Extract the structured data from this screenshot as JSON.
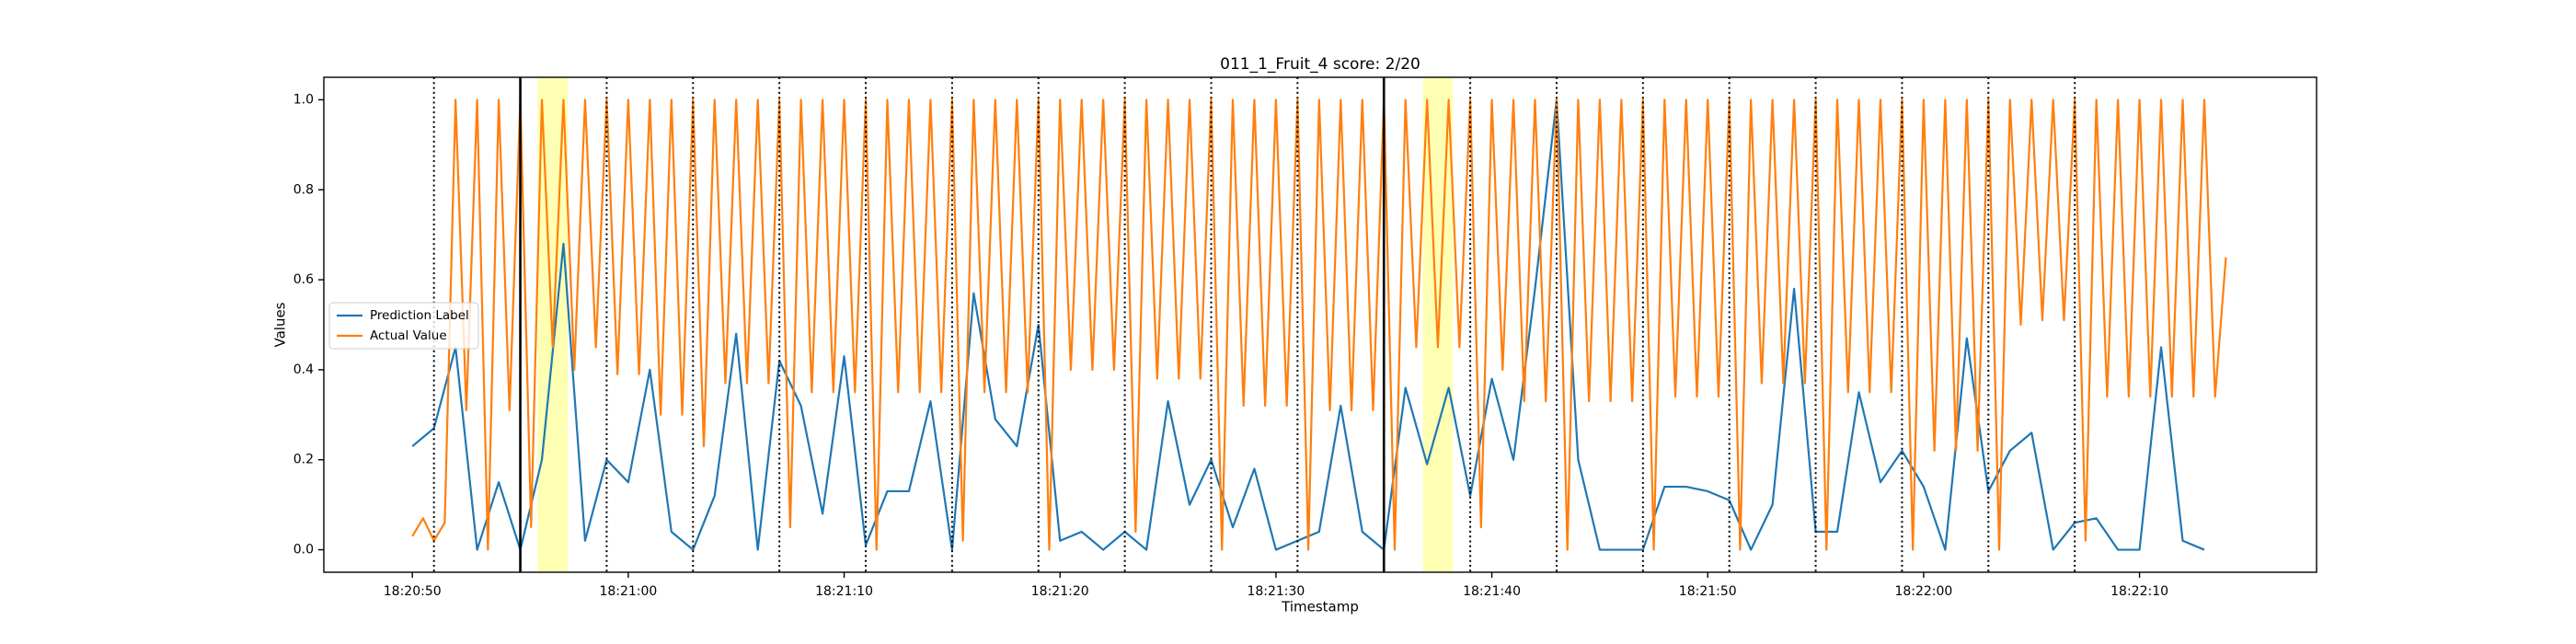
{
  "chart_data": {
    "type": "line",
    "title": "011_1_Fruit_4 score: 2/20",
    "xlabel": "Timestamp",
    "ylabel": "Values",
    "legend": "center left",
    "xlim": [
      "18:20:45.9",
      "18:22:18.2"
    ],
    "xticks": [
      "18:20:50",
      "18:21:00",
      "18:21:10",
      "18:21:20",
      "18:21:30",
      "18:21:40",
      "18:21:50",
      "18:22:00",
      "18:22:10"
    ],
    "ylim": [
      -0.05,
      1.05
    ],
    "yticks": [
      {
        "value": 0,
        "label": "0.0"
      },
      0.2,
      0.4,
      0.6,
      0.8,
      {
        "value": 1,
        "label": "1.0"
      }
    ],
    "highlight_spans": [
      [
        "18:20:55.8",
        "18:20:57.2"
      ],
      [
        "18:21:36.8",
        "18:21:38.2"
      ]
    ],
    "highlight_color": "#ffff99",
    "dotted_lines": [
      "18:20:51",
      "18:20:59",
      "18:21:03",
      "18:21:07",
      "18:21:11",
      "18:21:15",
      "18:21:19",
      "18:21:23",
      "18:21:27",
      "18:21:31",
      "18:21:39",
      "18:21:43",
      "18:21:47",
      "18:21:51",
      "18:21:55",
      "18:21:59",
      "18:22:03",
      "18:22:07"
    ],
    "solid_lines": [
      "18:20:55",
      "18:21:35"
    ],
    "series": [
      {
        "name": "Prediction Label",
        "color": "#1f77b4",
        "x": [
          "18:20:50",
          "18:20:51",
          "18:20:52",
          "18:20:53",
          "18:20:54",
          "18:20:55",
          "18:20:56",
          "18:20:57",
          "18:20:58",
          "18:20:59",
          "18:21:00",
          "18:21:01",
          "18:21:02",
          "18:21:03",
          "18:21:04",
          "18:21:05",
          "18:21:06",
          "18:21:07",
          "18:21:08",
          "18:21:09",
          "18:21:10",
          "18:21:11",
          "18:21:12",
          "18:21:13",
          "18:21:14",
          "18:21:15",
          "18:21:16",
          "18:21:17",
          "18:21:18",
          "18:21:19",
          "18:21:20",
          "18:21:21",
          "18:21:22",
          "18:21:23",
          "18:21:24",
          "18:21:25",
          "18:21:26",
          "18:21:27",
          "18:21:28",
          "18:21:29",
          "18:21:30",
          "18:21:31",
          "18:21:32",
          "18:21:33",
          "18:21:34",
          "18:21:35",
          "18:21:36",
          "18:21:37",
          "18:21:38",
          "18:21:39",
          "18:21:40",
          "18:21:41",
          "18:21:42",
          "18:21:43",
          "18:21:44",
          "18:21:45",
          "18:21:46",
          "18:21:47",
          "18:21:48",
          "18:21:49",
          "18:21:50",
          "18:21:51",
          "18:21:52",
          "18:21:53",
          "18:21:54",
          "18:21:55",
          "18:21:56",
          "18:21:57",
          "18:21:58",
          "18:21:59",
          "18:22:00",
          "18:22:01",
          "18:22:02",
          "18:22:03",
          "18:22:04",
          "18:22:05",
          "18:22:06",
          "18:22:07",
          "18:22:08",
          "18:22:09",
          "18:22:10",
          "18:22:11",
          "18:22:12",
          "18:22:13"
        ],
        "values": [
          0.23,
          0.27,
          0.45,
          0,
          0.15,
          0,
          0.2,
          0.68,
          0.02,
          0.2,
          0.15,
          0.4,
          0.04,
          0,
          0.12,
          0.48,
          0,
          0.42,
          0.32,
          0.08,
          0.43,
          0.01,
          0.13,
          0.13,
          0.33,
          0,
          0.57,
          0.29,
          0.23,
          0.5,
          0.02,
          0.04,
          0,
          0.04,
          0,
          0.33,
          0.1,
          0.2,
          0.05,
          0.18,
          0,
          0.02,
          0.04,
          0.32,
          0.04,
          0,
          0.36,
          0.19,
          0.36,
          0.12,
          0.38,
          0.2,
          0.58,
          1,
          0.2,
          0,
          0,
          0,
          0.14,
          0.14,
          0.13,
          0.11,
          0,
          0.1,
          0.58,
          0.04,
          0.04,
          0.35,
          0.15,
          0.22,
          0.14,
          0,
          0.47,
          0.13,
          0.22,
          0.26,
          0,
          0.06,
          0.07,
          0,
          0,
          0.45,
          0.02,
          0
        ]
      },
      {
        "name": "Actual Value",
        "color": "#ff7f0e",
        "x": [
          "18:20:50",
          "18:20:50.5",
          "18:20:51",
          "18:20:51.5",
          "18:20:52",
          "18:20:52.5",
          "18:20:53",
          "18:20:53.5",
          "18:20:54",
          "18:20:54.5",
          "18:20:55",
          "18:20:55.5",
          "18:20:56",
          "18:20:56.5",
          "18:20:57",
          "18:20:57.5",
          "18:20:58",
          "18:20:58.5",
          "18:20:59",
          "18:20:59.5",
          "18:21:00",
          "18:21:00.5",
          "18:21:01",
          "18:21:01.5",
          "18:21:02",
          "18:21:02.5",
          "18:21:03",
          "18:21:03.5",
          "18:21:04",
          "18:21:04.5",
          "18:21:05",
          "18:21:05.5",
          "18:21:06",
          "18:21:06.5",
          "18:21:07",
          "18:21:07.5",
          "18:21:08",
          "18:21:08.5",
          "18:21:09",
          "18:21:09.5",
          "18:21:10",
          "18:21:10.5",
          "18:21:11",
          "18:21:11.5",
          "18:21:12",
          "18:21:12.5",
          "18:21:13",
          "18:21:13.5",
          "18:21:14",
          "18:21:14.5",
          "18:21:15",
          "18:21:15.5",
          "18:21:16",
          "18:21:16.5",
          "18:21:17",
          "18:21:17.5",
          "18:21:18",
          "18:21:18.5",
          "18:21:19",
          "18:21:19.5",
          "18:21:20",
          "18:21:20.5",
          "18:21:21",
          "18:21:21.5",
          "18:21:22",
          "18:21:22.5",
          "18:21:23",
          "18:21:23.5",
          "18:21:24",
          "18:21:24.5",
          "18:21:25",
          "18:21:25.5",
          "18:21:26",
          "18:21:26.5",
          "18:21:27",
          "18:21:27.5",
          "18:21:28",
          "18:21:28.5",
          "18:21:29",
          "18:21:29.5",
          "18:21:30",
          "18:21:30.5",
          "18:21:31",
          "18:21:31.5",
          "18:21:32",
          "18:21:32.5",
          "18:21:33",
          "18:21:33.5",
          "18:21:34",
          "18:21:34.5",
          "18:21:35",
          "18:21:35.5",
          "18:21:36",
          "18:21:36.5",
          "18:21:37",
          "18:21:37.5",
          "18:21:38",
          "18:21:38.5",
          "18:21:39",
          "18:21:39.5",
          "18:21:40",
          "18:21:40.5",
          "18:21:41",
          "18:21:41.5",
          "18:21:42",
          "18:21:42.5",
          "18:21:43",
          "18:21:43.5",
          "18:21:44",
          "18:21:44.5",
          "18:21:45",
          "18:21:45.5",
          "18:21:46",
          "18:21:46.5",
          "18:21:47",
          "18:21:47.5",
          "18:21:48",
          "18:21:48.5",
          "18:21:49",
          "18:21:49.5",
          "18:21:50",
          "18:21:50.5",
          "18:21:51",
          "18:21:51.5",
          "18:21:52",
          "18:21:52.5",
          "18:21:53",
          "18:21:53.5",
          "18:21:54",
          "18:21:54.5",
          "18:21:55",
          "18:21:55.5",
          "18:21:56",
          "18:21:56.5",
          "18:21:57",
          "18:21:57.5",
          "18:21:58",
          "18:21:58.5",
          "18:21:59",
          "18:21:59.5",
          "18:22:00",
          "18:22:00.5",
          "18:22:01",
          "18:22:01.5",
          "18:22:02",
          "18:22:02.5",
          "18:22:03",
          "18:22:03.5",
          "18:22:04",
          "18:22:04.5",
          "18:22:05",
          "18:22:05.5",
          "18:22:06",
          "18:22:06.5",
          "18:22:07",
          "18:22:07.5",
          "18:22:08",
          "18:22:08.5",
          "18:22:09",
          "18:22:09.5",
          "18:22:10",
          "18:22:10.5",
          "18:22:11",
          "18:22:11.5",
          "18:22:12",
          "18:22:12.5",
          "18:22:13",
          "18:22:13.5",
          "18:22:14"
        ],
        "values": [
          0.03,
          0.07,
          0.02,
          0.06,
          1,
          0.31,
          1,
          0,
          1,
          0.31,
          1,
          0.05,
          1,
          0.45,
          1,
          0.4,
          1,
          0.45,
          1,
          0.39,
          1,
          0.39,
          1,
          0.3,
          1,
          0.3,
          1,
          0.23,
          1,
          0.37,
          1,
          0.37,
          1,
          0.37,
          1,
          0.05,
          1,
          0.35,
          1,
          0.35,
          1,
          0.35,
          1,
          0,
          1,
          0.35,
          1,
          0.35,
          1,
          0.35,
          1,
          0.02,
          1,
          0.35,
          1,
          0.35,
          1,
          0.35,
          1,
          0,
          1,
          0.4,
          1,
          0.4,
          1,
          0.4,
          1,
          0.04,
          1,
          0.38,
          1,
          0.38,
          1,
          0.38,
          1,
          0,
          1,
          0.32,
          1,
          0.32,
          1,
          0.32,
          1,
          0,
          1,
          0.31,
          1,
          0.31,
          1,
          0.31,
          1,
          0,
          1,
          0.45,
          1,
          0.45,
          1,
          0.45,
          1,
          0.05,
          1,
          0.4,
          1,
          0.33,
          1,
          0.33,
          1,
          0,
          1,
          0.33,
          1,
          0.33,
          1,
          0.33,
          1,
          0,
          1,
          0.34,
          1,
          0.34,
          1,
          0.34,
          1,
          0,
          1,
          0.37,
          1,
          0.37,
          1,
          0.37,
          1,
          0,
          1,
          0.35,
          1,
          0.35,
          1,
          0.35,
          1,
          0,
          1,
          0.22,
          1,
          0.22,
          1,
          0.22,
          1,
          0,
          1,
          0.5,
          1,
          0.51,
          1,
          0.51,
          1,
          0.02,
          1,
          0.34,
          1,
          0.34,
          1,
          0.34,
          1,
          0.34,
          1,
          0.34,
          1,
          0.34,
          0.65
        ]
      }
    ]
  }
}
